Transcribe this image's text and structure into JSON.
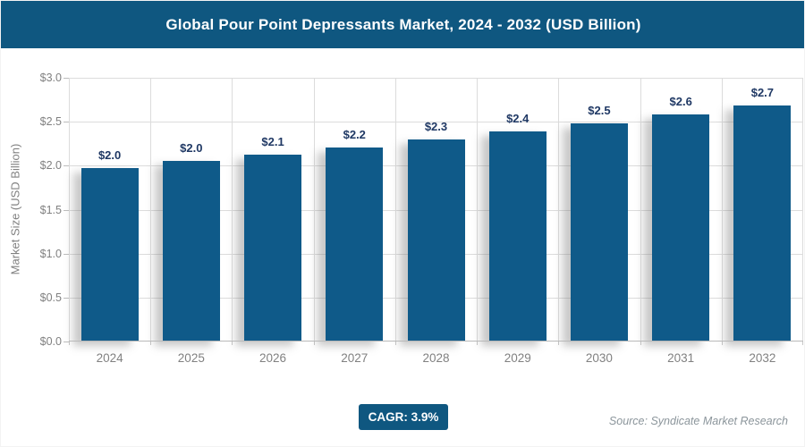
{
  "header": {
    "title": "Global Pour Point Depressants Market, 2024 - 2032 (USD Billion)"
  },
  "chart_data": {
    "type": "bar",
    "title": "Global Pour Point Depressants Market, 2024 - 2032 (USD Billion)",
    "categories": [
      "2024",
      "2025",
      "2026",
      "2027",
      "2028",
      "2029",
      "2030",
      "2031",
      "2032"
    ],
    "values": [
      1.97,
      2.05,
      2.13,
      2.21,
      2.3,
      2.39,
      2.48,
      2.58,
      2.68
    ],
    "bar_labels": [
      "$2.0",
      "$2.0",
      "$2.1",
      "$2.2",
      "$2.3",
      "$2.4",
      "$2.5",
      "$2.6",
      "$2.7"
    ],
    "xlabel": "",
    "ylabel": "Market Size (USD Billion)",
    "ylim": [
      0,
      3.0
    ],
    "ytick_step": 0.5,
    "ytick_labels_top_to_bottom": [
      "$3.0",
      "$2.5",
      "$2.0",
      "$1.5",
      "$1.0",
      "$0.5",
      "$0.0"
    ],
    "grid": true,
    "legend": "none",
    "bar_color": "#0f5a89"
  },
  "footer": {
    "cagr_label": "CAGR: 3.9%",
    "source": "Source: Syndicate Market Research"
  },
  "colors": {
    "header_bg": "#0f5780",
    "bar_fill": "#0f5a89",
    "data_label": "#1f3864",
    "axis_text": "#808080",
    "gridline": "#dcdcdc",
    "source_text": "#8b959b",
    "badge_bg": "#0f5780",
    "badge_text": "#ffffff"
  }
}
